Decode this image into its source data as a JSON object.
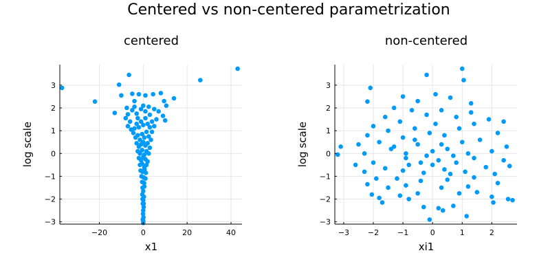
{
  "figure": {
    "title": "Centered vs non-centered parametrization",
    "marker_color": "#009AFA"
  },
  "chart_data": [
    {
      "type": "scatter",
      "title": "centered",
      "xlabel": "x1",
      "ylabel": "log scale",
      "xlim": [
        -38,
        45
      ],
      "ylim": [
        -3.1,
        3.9
      ],
      "xticks": [
        -20,
        0,
        20,
        40
      ],
      "xtick_labels": [
        "−20",
        "0",
        "20",
        "40"
      ],
      "yticks": [
        -3,
        -2,
        -1,
        0,
        1,
        2,
        3
      ],
      "ytick_labels": [
        "−3",
        "−2",
        "−1",
        "0",
        "1",
        "2",
        "3"
      ],
      "grid": true,
      "legend": "none",
      "points": [
        [
          43.0,
          3.72
        ],
        [
          26.0,
          3.22
        ],
        [
          -37.0,
          2.88
        ],
        [
          -22.0,
          2.28
        ],
        [
          -6.5,
          3.45
        ],
        [
          -11.0,
          3.02
        ],
        [
          -5.0,
          2.62
        ],
        [
          -2.0,
          2.6
        ],
        [
          -10.0,
          2.55
        ],
        [
          -4.0,
          2.3
        ],
        [
          1.0,
          2.55
        ],
        [
          4.5,
          2.6
        ],
        [
          8.0,
          2.65
        ],
        [
          14.0,
          2.42
        ],
        [
          9.5,
          2.3
        ],
        [
          10.5,
          2.1
        ],
        [
          -13.0,
          1.78
        ],
        [
          -7.5,
          2.0
        ],
        [
          -7.0,
          1.72
        ],
        [
          -6.0,
          1.4
        ],
        [
          -5.0,
          1.9
        ],
        [
          -4.0,
          2.05
        ],
        [
          0.0,
          2.1
        ],
        [
          2.5,
          2.05
        ],
        [
          5.0,
          1.95
        ],
        [
          7.0,
          1.85
        ],
        [
          9.0,
          1.65
        ],
        [
          10.0,
          1.45
        ],
        [
          6.0,
          1.5
        ],
        [
          -3.0,
          1.75
        ],
        [
          -2.5,
          1.55
        ],
        [
          -1.0,
          1.95
        ],
        [
          1.0,
          1.85
        ],
        [
          3.0,
          1.7
        ],
        [
          -8.0,
          1.55
        ],
        [
          -7.0,
          1.2
        ],
        [
          -5.5,
          1.05
        ],
        [
          -4.0,
          1.1
        ],
        [
          -3.0,
          1.3
        ],
        [
          -2.0,
          1.15
        ],
        [
          -1.0,
          1.4
        ],
        [
          0.0,
          1.25
        ],
        [
          1.0,
          1.55
        ],
        [
          2.0,
          1.3
        ],
        [
          3.0,
          1.15
        ],
        [
          4.0,
          1.4
        ],
        [
          5.0,
          1.2
        ],
        [
          4.0,
          0.95
        ],
        [
          -4.5,
          0.9
        ],
        [
          -3.5,
          0.7
        ],
        [
          -2.5,
          0.8
        ],
        [
          -1.5,
          0.6
        ],
        [
          -0.5,
          0.85
        ],
        [
          0.5,
          0.7
        ],
        [
          1.5,
          0.95
        ],
        [
          2.5,
          0.75
        ],
        [
          3.5,
          0.6
        ],
        [
          -3.0,
          0.45
        ],
        [
          -2.0,
          0.3
        ],
        [
          -1.0,
          0.4
        ],
        [
          0.0,
          0.5
        ],
        [
          1.0,
          0.35
        ],
        [
          2.0,
          0.45
        ],
        [
          3.0,
          0.25
        ],
        [
          -2.5,
          0.1
        ],
        [
          -1.5,
          0.0
        ],
        [
          -0.5,
          0.15
        ],
        [
          0.5,
          -0.05
        ],
        [
          1.5,
          0.1
        ],
        [
          2.5,
          0.0
        ],
        [
          -2.0,
          -0.2
        ],
        [
          -1.0,
          -0.3
        ],
        [
          0.0,
          -0.15
        ],
        [
          1.0,
          -0.25
        ],
        [
          2.0,
          -0.35
        ],
        [
          -1.5,
          -0.5
        ],
        [
          -0.5,
          -0.45
        ],
        [
          0.5,
          -0.6
        ],
        [
          1.5,
          -0.5
        ],
        [
          -1.2,
          -0.75
        ],
        [
          -0.3,
          -0.8
        ],
        [
          0.6,
          -0.7
        ],
        [
          1.2,
          -0.85
        ],
        [
          -0.8,
          -1.0
        ],
        [
          0.2,
          -1.05
        ],
        [
          1.0,
          -1.1
        ],
        [
          -0.5,
          -1.25
        ],
        [
          0.4,
          -1.3
        ],
        [
          -0.3,
          -1.5
        ],
        [
          0.5,
          -1.45
        ],
        [
          0.0,
          -1.65
        ],
        [
          -0.4,
          -1.8
        ],
        [
          0.3,
          -1.9
        ],
        [
          0.0,
          -2.05
        ],
        [
          -0.2,
          -2.2
        ],
        [
          0.2,
          -2.35
        ],
        [
          0.0,
          -2.5
        ],
        [
          -0.1,
          -2.65
        ],
        [
          0.1,
          -2.8
        ],
        [
          0.0,
          -2.95
        ],
        [
          0.0,
          -3.05
        ],
        [
          -0.2,
          -2.9
        ],
        [
          0.2,
          -2.2
        ],
        [
          -0.3,
          -2.0
        ]
      ]
    },
    {
      "type": "scatter",
      "title": "non-centered",
      "xlabel": "xi1",
      "ylabel": "log scale",
      "xlim": [
        -3.3,
        2.85
      ],
      "ylim": [
        -3.1,
        3.9
      ],
      "xticks": [
        -3,
        -2,
        -1,
        0,
        1,
        2
      ],
      "xtick_labels": [
        "−3",
        "−2",
        "−1",
        "0",
        "1",
        "2"
      ],
      "yticks": [
        -3,
        -2,
        -1,
        0,
        1,
        2,
        3
      ],
      "ytick_labels": [
        "−3",
        "−2",
        "−1",
        "0",
        "1",
        "2",
        "3"
      ],
      "grid": true,
      "legend": "none",
      "points": [
        [
          1.0,
          3.72
        ],
        [
          1.05,
          3.22
        ],
        [
          -0.2,
          3.45
        ],
        [
          -2.1,
          2.88
        ],
        [
          -2.2,
          2.28
        ],
        [
          -3.2,
          -0.05
        ],
        [
          -3.1,
          0.3
        ],
        [
          2.7,
          -2.05
        ],
        [
          2.55,
          -2.0
        ],
        [
          1.15,
          -2.75
        ],
        [
          -0.1,
          -2.9
        ],
        [
          0.35,
          -2.5
        ],
        [
          0.2,
          -2.4
        ],
        [
          -0.3,
          -2.35
        ],
        [
          0.7,
          -2.3
        ],
        [
          2.05,
          -2.15
        ],
        [
          -1.7,
          -2.15
        ],
        [
          -1.8,
          -1.95
        ],
        [
          -2.05,
          -1.8
        ],
        [
          -1.1,
          -1.85
        ],
        [
          -0.8,
          -2.0
        ],
        [
          2.0,
          -1.9
        ],
        [
          1.5,
          -1.7
        ],
        [
          0.9,
          -1.75
        ],
        [
          -0.5,
          -1.75
        ],
        [
          -2.2,
          -1.35
        ],
        [
          -1.5,
          -1.5
        ],
        [
          -0.9,
          -1.4
        ],
        [
          0.3,
          -1.5
        ],
        [
          1.2,
          -1.45
        ],
        [
          2.2,
          -1.3
        ],
        [
          -2.6,
          -0.5
        ],
        [
          -2.3,
          -0.8
        ],
        [
          -1.9,
          -1.1
        ],
        [
          -1.2,
          -1.1
        ],
        [
          -0.4,
          -1.2
        ],
        [
          0.5,
          -1.15
        ],
        [
          1.4,
          -1.05
        ],
        [
          2.1,
          -0.9
        ],
        [
          2.6,
          -0.55
        ],
        [
          -2.5,
          0.4
        ],
        [
          -2.3,
          0.0
        ],
        [
          -2.0,
          -0.4
        ],
        [
          -1.6,
          -0.65
        ],
        [
          -1.0,
          -0.75
        ],
        [
          -0.3,
          -0.85
        ],
        [
          0.4,
          -0.7
        ],
        [
          1.1,
          -0.8
        ],
        [
          1.8,
          -0.6
        ],
        [
          2.4,
          -0.3
        ],
        [
          -2.2,
          0.8
        ],
        [
          -1.8,
          0.5
        ],
        [
          -1.4,
          0.2
        ],
        [
          -0.9,
          -0.2
        ],
        [
          -0.4,
          -0.4
        ],
        [
          0.2,
          -0.3
        ],
        [
          0.8,
          -0.4
        ],
        [
          1.4,
          -0.2
        ],
        [
          2.0,
          0.1
        ],
        [
          2.5,
          0.3
        ],
        [
          -2.0,
          1.2
        ],
        [
          -1.5,
          1.0
        ],
        [
          -1.0,
          0.7
        ],
        [
          -0.5,
          0.4
        ],
        [
          0.0,
          0.1
        ],
        [
          0.5,
          0.2
        ],
        [
          1.0,
          0.5
        ],
        [
          1.6,
          0.6
        ],
        [
          2.2,
          0.9
        ],
        [
          -1.6,
          1.6
        ],
        [
          -1.1,
          1.4
        ],
        [
          -0.6,
          1.1
        ],
        [
          -0.1,
          0.9
        ],
        [
          0.4,
          0.8
        ],
        [
          0.9,
          1.1
        ],
        [
          1.4,
          1.3
        ],
        [
          1.9,
          1.5
        ],
        [
          -1.3,
          2.0
        ],
        [
          -0.7,
          1.9
        ],
        [
          -0.2,
          1.7
        ],
        [
          0.3,
          1.9
        ],
        [
          0.8,
          1.6
        ],
        [
          1.3,
          1.8
        ],
        [
          2.4,
          1.4
        ],
        [
          -1.0,
          2.5
        ],
        [
          -0.5,
          2.3
        ],
        [
          0.1,
          2.6
        ],
        [
          0.6,
          2.45
        ],
        [
          1.3,
          2.2
        ],
        [
          -0.9,
          0.0
        ],
        [
          -0.2,
          -0.1
        ],
        [
          0.3,
          0.4
        ],
        [
          0.7,
          -0.1
        ],
        [
          -0.6,
          0.6
        ],
        [
          0.0,
          -0.5
        ],
        [
          0.6,
          -0.9
        ],
        [
          -0.8,
          -0.5
        ],
        [
          1.2,
          0.0
        ],
        [
          -1.3,
          0.3
        ],
        [
          0.1,
          1.3
        ]
      ]
    }
  ]
}
